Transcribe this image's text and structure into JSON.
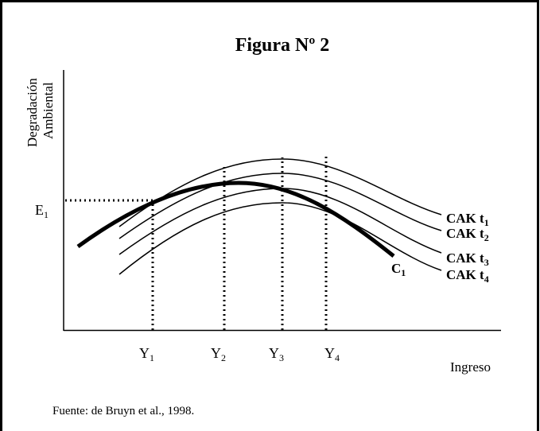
{
  "title": "Figura Nº 2",
  "y_axis_label": [
    "Degradación",
    "Ambiental"
  ],
  "x_axis_label": "Ingreso",
  "e_label": {
    "text": "E",
    "sub": "1"
  },
  "y_labels": [
    {
      "text": "Y",
      "sub": "1"
    },
    {
      "text": "Y",
      "sub": "2"
    },
    {
      "text": "Y",
      "sub": "3"
    },
    {
      "text": "Y",
      "sub": "4"
    }
  ],
  "curve_labels": [
    {
      "text": "CAK t",
      "sub": "1"
    },
    {
      "text": "CAK t",
      "sub": "2"
    },
    {
      "text": "CAK t",
      "sub": "3"
    },
    {
      "text": "CAK t",
      "sub": "4"
    }
  ],
  "c_label": {
    "text": "C",
    "sub": "1"
  },
  "source": "Fuente: de Bruyn et al., 1998."
}
